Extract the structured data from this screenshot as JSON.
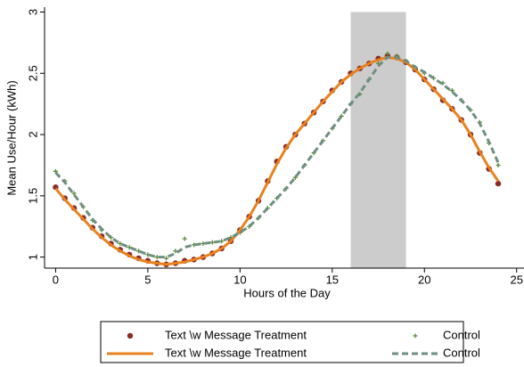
{
  "chart_data": {
    "type": "scatter",
    "x_label": "Hours of the Day",
    "y_label": "Mean Use/Hour (kWh)",
    "xlim": [
      -0.6,
      25.4
    ],
    "ylim": [
      0.91,
      3.04
    ],
    "xticks": [
      0,
      5,
      10,
      15,
      20,
      25
    ],
    "yticks": [
      1,
      1.5,
      2,
      2.5,
      3
    ],
    "shaded_region": {
      "x": [
        16,
        19
      ],
      "y": [
        0.91,
        3
      ],
      "color": "#cccccc"
    },
    "legend": "bottom",
    "x": [
      0,
      0.5,
      1,
      1.5,
      2,
      2.5,
      3,
      3.5,
      4,
      4.5,
      5,
      5.5,
      6,
      6.5,
      7,
      7.5,
      8,
      8.5,
      9,
      9.5,
      10,
      10.5,
      11,
      11.5,
      12,
      12.5,
      13,
      13.5,
      14,
      14.5,
      15,
      15.5,
      16,
      16.5,
      17,
      17.5,
      18,
      18.5,
      19,
      19.5,
      20,
      20.5,
      21,
      21.5,
      22,
      22.5,
      23,
      23.5,
      24
    ],
    "series": [
      {
        "name": "Text \\w Message Treatment",
        "kind": "scatter",
        "marker": "dot",
        "color": "#8b2a2a",
        "values": [
          1.57,
          1.48,
          1.4,
          1.32,
          1.24,
          1.17,
          1.11,
          1.06,
          1.02,
          0.99,
          0.97,
          0.95,
          0.94,
          0.95,
          0.97,
          0.98,
          1.0,
          1.03,
          1.07,
          1.13,
          1.22,
          1.33,
          1.46,
          1.62,
          1.78,
          1.9,
          2.0,
          2.09,
          2.18,
          2.27,
          2.36,
          2.43,
          2.5,
          2.54,
          2.58,
          2.62,
          2.64,
          2.63,
          2.59,
          2.53,
          2.45,
          2.37,
          2.28,
          2.21,
          2.12,
          2.0,
          1.85,
          1.72,
          1.6
        ]
      },
      {
        "name": "Control",
        "kind": "scatter",
        "marker": "plus",
        "color": "#5a8a3a",
        "values": [
          1.7,
          1.62,
          1.52,
          1.41,
          1.3,
          1.22,
          1.16,
          1.11,
          1.08,
          1.05,
          1.02,
          1.0,
          0.99,
          1.05,
          1.15,
          1.1,
          1.11,
          1.12,
          1.13,
          1.16,
          1.2,
          1.25,
          1.32,
          1.4,
          1.48,
          1.56,
          1.65,
          1.75,
          1.85,
          1.95,
          2.05,
          2.15,
          2.25,
          2.33,
          2.45,
          2.58,
          2.66,
          2.64,
          2.6,
          2.55,
          2.5,
          2.46,
          2.42,
          2.36,
          2.28,
          2.2,
          2.1,
          1.93,
          1.75
        ]
      },
      {
        "name": "Text \\w Message Treatment",
        "kind": "line",
        "dash": false,
        "color": "#e8821e",
        "values": [
          1.56,
          1.47,
          1.39,
          1.31,
          1.23,
          1.16,
          1.1,
          1.05,
          1.01,
          0.98,
          0.96,
          0.95,
          0.94,
          0.95,
          0.96,
          0.98,
          1.0,
          1.03,
          1.07,
          1.13,
          1.22,
          1.33,
          1.46,
          1.61,
          1.76,
          1.89,
          2.0,
          2.09,
          2.18,
          2.27,
          2.35,
          2.43,
          2.49,
          2.54,
          2.58,
          2.61,
          2.63,
          2.62,
          2.59,
          2.53,
          2.45,
          2.37,
          2.29,
          2.21,
          2.12,
          2.0,
          1.86,
          1.73,
          1.62
        ]
      },
      {
        "name": "Control",
        "kind": "line",
        "dash": true,
        "color": "#6f8f80",
        "values": [
          1.69,
          1.61,
          1.51,
          1.41,
          1.31,
          1.23,
          1.16,
          1.11,
          1.08,
          1.05,
          1.02,
          1.0,
          1.0,
          1.03,
          1.08,
          1.1,
          1.11,
          1.12,
          1.13,
          1.16,
          1.2,
          1.25,
          1.32,
          1.4,
          1.48,
          1.56,
          1.65,
          1.75,
          1.85,
          1.95,
          2.05,
          2.15,
          2.25,
          2.34,
          2.45,
          2.56,
          2.63,
          2.63,
          2.6,
          2.55,
          2.51,
          2.46,
          2.41,
          2.35,
          2.28,
          2.2,
          2.09,
          1.94,
          1.77
        ]
      }
    ]
  }
}
